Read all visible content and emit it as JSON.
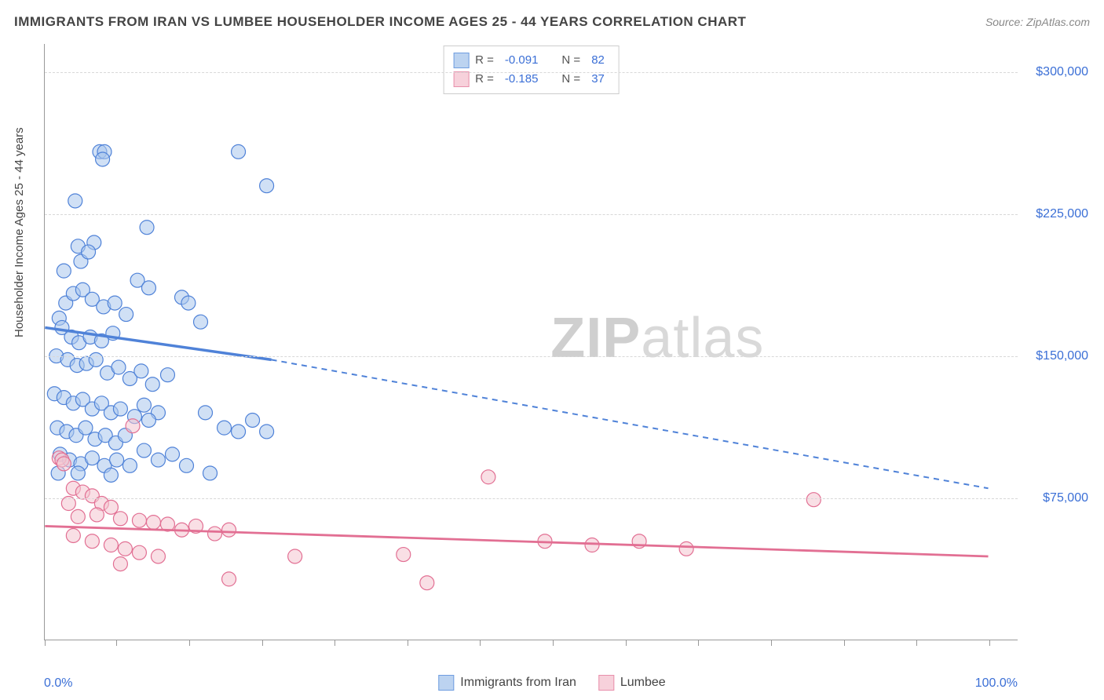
{
  "title": "IMMIGRANTS FROM IRAN VS LUMBEE HOUSEHOLDER INCOME AGES 25 - 44 YEARS CORRELATION CHART",
  "source": "Source: ZipAtlas.com",
  "watermark": {
    "bold": "ZIP",
    "rest": "atlas"
  },
  "ylabel": "Householder Income Ages 25 - 44 years",
  "chart": {
    "type": "scatter",
    "background_color": "#ffffff",
    "grid_color": "#d8d8d8",
    "border_color": "#999999",
    "title_fontsize": 17,
    "label_fontsize": 15,
    "tick_fontsize": 16,
    "tick_color": "#3b6fd6",
    "xlim": [
      0,
      100
    ],
    "ylim": [
      0,
      315000
    ],
    "xticks_label": {
      "min": "0.0%",
      "max": "100.0%"
    },
    "xticks_pos_pct": [
      0,
      7.6,
      15.3,
      23.0,
      30.7,
      38.4,
      46.1,
      53.8,
      61.5,
      69.2,
      76.9,
      84.6,
      92.3,
      100
    ],
    "yticks": [
      {
        "value": 75000,
        "label": "$75,000"
      },
      {
        "value": 150000,
        "label": "$150,000"
      },
      {
        "value": 225000,
        "label": "$225,000"
      },
      {
        "value": 300000,
        "label": "$300,000"
      }
    ],
    "marker_radius": 9,
    "marker_opacity": 0.55,
    "marker_stroke_width": 1.2
  },
  "series": [
    {
      "key": "iran",
      "label": "Immigrants from Iran",
      "fill": "#a9c6ec",
      "stroke": "#4f82d8",
      "swatch_fill": "#bcd3f0",
      "swatch_border": "#6f9de0",
      "R_label": "R = ",
      "R": "-0.091",
      "N_label": "N = ",
      "N": "82",
      "regression": {
        "solid": {
          "x1": 0,
          "y1": 165000,
          "x2": 24,
          "y2": 148000,
          "width": 3.5
        },
        "dashed": {
          "x1": 24,
          "y1": 148000,
          "x2": 100,
          "y2": 80000,
          "width": 2,
          "dash": "7 6"
        }
      },
      "points": [
        [
          3.2,
          232000
        ],
        [
          5.8,
          258000
        ],
        [
          6.3,
          258000
        ],
        [
          6.1,
          254000
        ],
        [
          20.5,
          258000
        ],
        [
          23.5,
          240000
        ],
        [
          2.0,
          195000
        ],
        [
          3.5,
          208000
        ],
        [
          5.2,
          210000
        ],
        [
          10.8,
          218000
        ],
        [
          3.8,
          200000
        ],
        [
          4.6,
          205000
        ],
        [
          1.5,
          170000
        ],
        [
          2.2,
          178000
        ],
        [
          3.0,
          183000
        ],
        [
          4.0,
          185000
        ],
        [
          5.0,
          180000
        ],
        [
          6.2,
          176000
        ],
        [
          7.4,
          178000
        ],
        [
          8.6,
          172000
        ],
        [
          9.8,
          190000
        ],
        [
          11.0,
          186000
        ],
        [
          14.5,
          181000
        ],
        [
          15.2,
          178000
        ],
        [
          1.8,
          165000
        ],
        [
          2.8,
          160000
        ],
        [
          3.6,
          157000
        ],
        [
          4.8,
          160000
        ],
        [
          6.0,
          158000
        ],
        [
          7.2,
          162000
        ],
        [
          1.2,
          150000
        ],
        [
          2.4,
          148000
        ],
        [
          3.4,
          145000
        ],
        [
          4.4,
          146000
        ],
        [
          5.4,
          148000
        ],
        [
          6.6,
          141000
        ],
        [
          7.8,
          144000
        ],
        [
          9.0,
          138000
        ],
        [
          10.2,
          142000
        ],
        [
          11.4,
          135000
        ],
        [
          13.0,
          140000
        ],
        [
          16.5,
          168000
        ],
        [
          1.0,
          130000
        ],
        [
          2.0,
          128000
        ],
        [
          3.0,
          125000
        ],
        [
          4.0,
          127000
        ],
        [
          5.0,
          122000
        ],
        [
          6.0,
          125000
        ],
        [
          7.0,
          120000
        ],
        [
          8.0,
          122000
        ],
        [
          9.5,
          118000
        ],
        [
          10.5,
          124000
        ],
        [
          12.0,
          120000
        ],
        [
          17.0,
          120000
        ],
        [
          1.3,
          112000
        ],
        [
          2.3,
          110000
        ],
        [
          3.3,
          108000
        ],
        [
          4.3,
          112000
        ],
        [
          5.3,
          106000
        ],
        [
          6.4,
          108000
        ],
        [
          7.5,
          104000
        ],
        [
          8.5,
          108000
        ],
        [
          11.0,
          116000
        ],
        [
          19.0,
          112000
        ],
        [
          20.5,
          110000
        ],
        [
          22.0,
          116000
        ],
        [
          23.5,
          110000
        ],
        [
          1.6,
          98000
        ],
        [
          2.6,
          95000
        ],
        [
          3.8,
          93000
        ],
        [
          5.0,
          96000
        ],
        [
          6.3,
          92000
        ],
        [
          7.6,
          95000
        ],
        [
          9.0,
          92000
        ],
        [
          10.5,
          100000
        ],
        [
          12.0,
          95000
        ],
        [
          13.5,
          98000
        ],
        [
          15.0,
          92000
        ],
        [
          1.4,
          88000
        ],
        [
          3.5,
          88000
        ],
        [
          7.0,
          87000
        ],
        [
          17.5,
          88000
        ]
      ]
    },
    {
      "key": "lumbee",
      "label": "Lumbee",
      "fill": "#f4c4d0",
      "stroke": "#e26f93",
      "swatch_fill": "#f7d1db",
      "swatch_border": "#e88fab",
      "R_label": "R = ",
      "R": "-0.185",
      "N_label": "N = ",
      "N": "37",
      "regression": {
        "solid": {
          "x1": 0,
          "y1": 60000,
          "x2": 100,
          "y2": 44000,
          "width": 2.8
        }
      },
      "points": [
        [
          1.5,
          96000
        ],
        [
          1.8,
          95000
        ],
        [
          2.0,
          93000
        ],
        [
          9.3,
          113000
        ],
        [
          3.0,
          80000
        ],
        [
          4.0,
          78000
        ],
        [
          5.0,
          76000
        ],
        [
          2.5,
          72000
        ],
        [
          6.0,
          72000
        ],
        [
          7.0,
          70000
        ],
        [
          3.5,
          65000
        ],
        [
          5.5,
          66000
        ],
        [
          8.0,
          64000
        ],
        [
          10.0,
          63000
        ],
        [
          11.5,
          62000
        ],
        [
          13.0,
          61000
        ],
        [
          14.5,
          58000
        ],
        [
          16.0,
          60000
        ],
        [
          18.0,
          56000
        ],
        [
          19.5,
          58000
        ],
        [
          3.0,
          55000
        ],
        [
          5.0,
          52000
        ],
        [
          7.0,
          50000
        ],
        [
          8.5,
          48000
        ],
        [
          10.0,
          46000
        ],
        [
          12.0,
          44000
        ],
        [
          8.0,
          40000
        ],
        [
          26.5,
          44000
        ],
        [
          38.0,
          45000
        ],
        [
          40.5,
          30000
        ],
        [
          47.0,
          86000
        ],
        [
          53.0,
          52000
        ],
        [
          58.0,
          50000
        ],
        [
          63.0,
          52000
        ],
        [
          68.0,
          48000
        ],
        [
          81.5,
          74000
        ],
        [
          19.5,
          32000
        ]
      ]
    }
  ],
  "legend_bottom": [
    {
      "series": "iran"
    },
    {
      "series": "lumbee"
    }
  ]
}
